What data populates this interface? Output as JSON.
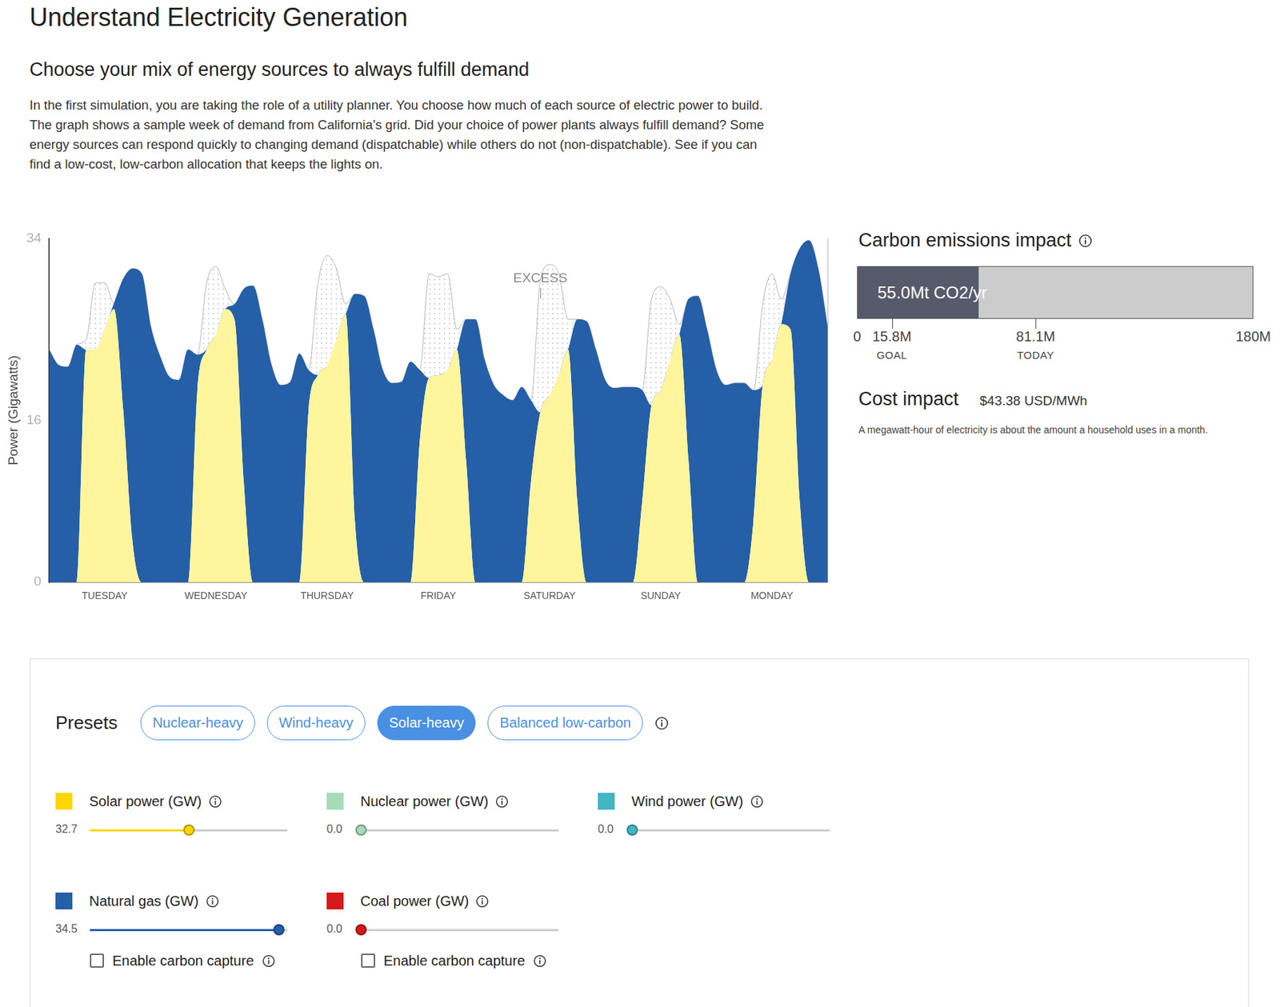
{
  "header": {
    "title": "Understand Electricity Generation",
    "subtitle": "Choose your mix of energy sources to always fulfill demand",
    "text": [
      "In the first simulation, you are taking the role of a utility planner. You choose how much of each source of electric power to build.",
      "The graph shows a sample week of demand from California’s grid. Did your choice of power plants always fulfill demand? Some",
      "energy sources can respond quickly to changing demand (dispatchable) while others do not (non-dispatchable). See if you can",
      "find a low-cost, low-carbon allocation that keeps the lights on."
    ]
  },
  "chart_data": {
    "type": "area",
    "stacked": true,
    "grid": false,
    "y_label": "Power (Gigawatts)",
    "ylim": [
      0,
      34
    ],
    "yticks": [
      0,
      16,
      34
    ],
    "categories": [
      null,
      null,
      null,
      null,
      null,
      null,
      "TUESDAY",
      null,
      null,
      null,
      null,
      null,
      null,
      null,
      null,
      null,
      null,
      null,
      "WEDNESDAY",
      null,
      null,
      null,
      null,
      null,
      null,
      null,
      null,
      null,
      null,
      null,
      "THURSDAY",
      null,
      null,
      null,
      null,
      null,
      null,
      null,
      null,
      null,
      null,
      null,
      "FRIDAY",
      null,
      null,
      null,
      null,
      null,
      null,
      null,
      null,
      null,
      null,
      null,
      "SATURDAY",
      null,
      null,
      null,
      null,
      null,
      null,
      null,
      null,
      null,
      null,
      null,
      "SUNDAY",
      null,
      null,
      null,
      null,
      null,
      null,
      null,
      null,
      null,
      null,
      null,
      "MONDAY",
      null,
      null,
      null,
      null,
      null,
      null
    ],
    "series": [
      {
        "name": "Solar power (GW)",
        "color": "#fff59d",
        "values": [
          0,
          0,
          0,
          0,
          23,
          23,
          25,
          27,
          17,
          4,
          0,
          0,
          0,
          0,
          0,
          0,
          19,
          23,
          24.5,
          27,
          26,
          10,
          0,
          0,
          0,
          0,
          0,
          0,
          17,
          20.5,
          21.5,
          24,
          26.5,
          6,
          0,
          0,
          0,
          0,
          0,
          0,
          14,
          20.2,
          20.5,
          21,
          23,
          12,
          0,
          0,
          0,
          0,
          0,
          0,
          10,
          16.8,
          18.5,
          20.5,
          23,
          8,
          0,
          0,
          0,
          0,
          0,
          0,
          8,
          17.5,
          19,
          22,
          24.5,
          12,
          0,
          0,
          0,
          0,
          0,
          0,
          6,
          19.5,
          22,
          25.5,
          25,
          8,
          0,
          0,
          0
        ]
      },
      {
        "name": "Natural gas (GW)",
        "color": "#245fa8",
        "values": [
          23,
          21.5,
          21.3,
          23.5,
          0,
          0,
          0,
          0.6,
          13,
          27,
          30.5,
          25.2,
          22.3,
          20.3,
          20,
          23,
          3.5,
          0,
          0,
          0,
          1.5,
          19,
          29.3,
          26,
          21.5,
          19.5,
          19.8,
          22.6,
          4,
          0,
          0,
          0,
          0,
          22.5,
          28.3,
          25,
          21,
          19.7,
          19.8,
          21.8,
          7,
          0,
          0,
          0,
          0,
          14,
          26,
          22,
          19.5,
          18.5,
          18,
          19.3,
          8,
          0,
          0,
          0,
          0,
          18,
          25.8,
          23,
          20,
          19.2,
          19.3,
          19.3,
          11,
          0,
          0,
          0,
          0,
          16,
          28.3,
          25,
          21,
          19.5,
          19.7,
          19.7,
          13,
          0,
          0,
          0,
          5.5,
          25,
          33.8,
          31,
          25.3
        ]
      },
      {
        "name": "EXCESS",
        "color": "#b5b5b5",
        "line_style": "dotted",
        "values": [
          0,
          0,
          0,
          0,
          1,
          6.6,
          4.6,
          0,
          0,
          0,
          0,
          0,
          0,
          0,
          0,
          0,
          0,
          6.6,
          6.7,
          2,
          0,
          0,
          0,
          0,
          0,
          0,
          0,
          0,
          0,
          9,
          10.8,
          7,
          1,
          0,
          0,
          0,
          0,
          0,
          0,
          0,
          0,
          10.3,
          9.7,
          9.5,
          2,
          0,
          0,
          0,
          0,
          0,
          0,
          0,
          0,
          13,
          12.9,
          10,
          3,
          0,
          0,
          0,
          0,
          0,
          0,
          0,
          0,
          10.5,
          10.2,
          6,
          1,
          0,
          0,
          0,
          0,
          0,
          0,
          0,
          0,
          8,
          8.5,
          2.5,
          0,
          0,
          0,
          0,
          0
        ]
      }
    ],
    "annotations": [
      {
        "text": "EXCESS",
        "x": 53,
        "y": 30
      }
    ]
  },
  "emissions": {
    "title": "Carbon emissions impact",
    "value": 55.0,
    "value_label": "55.0Mt CO2/yr",
    "range": [
      0,
      180
    ],
    "ticks": [
      0,
      {
        "value": 15.8,
        "label": "15.8M",
        "caption": "GOAL"
      },
      {
        "value": 81.1,
        "label": "81.1M",
        "caption": "TODAY"
      },
      {
        "value": 180,
        "label": "180M"
      }
    ]
  },
  "cost": {
    "title": "Cost impact",
    "value": 43.38,
    "value_label": "$43.38 USD/MWh",
    "note": "A megawatt-hour of electricity is about the amount a household uses in a month."
  },
  "controls": {
    "presets_title": "Presets",
    "presets": [
      {
        "label": "Nuclear-heavy",
        "active": false
      },
      {
        "label": "Wind-heavy",
        "active": false
      },
      {
        "label": "Solar-heavy",
        "active": true
      },
      {
        "label": "Balanced low-carbon",
        "active": false
      }
    ],
    "sliders": [
      {
        "label": "Solar power (GW)",
        "color": "#ffd600",
        "value": 32.7,
        "min": 0,
        "max": 65
      },
      {
        "label": "Nuclear power (GW)",
        "color": "#a5dcb8",
        "value": 0,
        "value_label": "0.0",
        "min": 0,
        "max": 40
      },
      {
        "label": "Wind power (GW)",
        "color": "#41b6c4",
        "value": 0,
        "value_label": "0.0",
        "min": 0,
        "max": 60
      },
      {
        "label": "Natural gas (GW)",
        "color": "#245fa8",
        "value": 34.5,
        "min": 0,
        "max": 36,
        "checkbox": {
          "label": "Enable carbon capture",
          "checked": false
        }
      },
      {
        "label": "Coal power (GW)",
        "color": "#d7191c",
        "value": 0,
        "value_label": "0.0",
        "min": 0,
        "max": 35,
        "checkbox": {
          "label": "Enable carbon capture",
          "checked": false
        }
      }
    ]
  }
}
